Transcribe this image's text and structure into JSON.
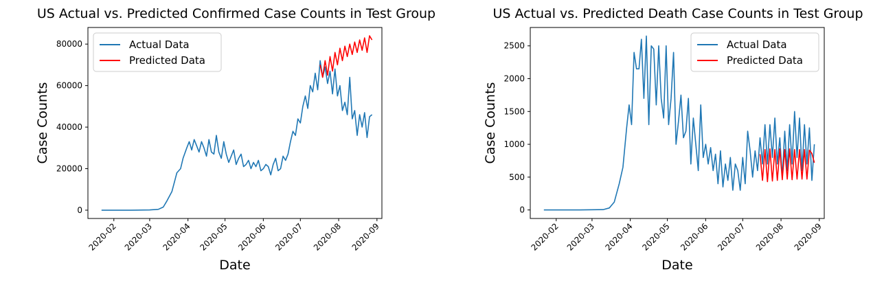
{
  "chart_data": [
    {
      "type": "line",
      "title": "US Actual vs. Predicted Confirmed Case Counts in Test Group",
      "xlabel": "Date",
      "ylabel": "Case Counts",
      "xlim": [
        "2020-01-11",
        "2020-09-05"
      ],
      "ylim": [
        -4000,
        88000
      ],
      "yticks": [
        0,
        20000,
        40000,
        60000,
        80000
      ],
      "xticks": [
        "2020-02",
        "2020-03",
        "2020-04",
        "2020-05",
        "2020-06",
        "2020-07",
        "2020-08",
        "2020-09"
      ],
      "legend": "upper-left",
      "grid": false,
      "series": [
        {
          "name": "Actual Data",
          "color": "#1f77b4",
          "x": [
            "2020-01-22",
            "2020-02-15",
            "2020-03-01",
            "2020-03-08",
            "2020-03-12",
            "2020-03-15",
            "2020-03-19",
            "2020-03-23",
            "2020-03-26",
            "2020-03-28",
            "2020-03-31",
            "2020-04-02",
            "2020-04-04",
            "2020-04-06",
            "2020-04-08",
            "2020-04-10",
            "2020-04-12",
            "2020-04-14",
            "2020-04-16",
            "2020-04-18",
            "2020-04-20",
            "2020-04-22",
            "2020-04-24",
            "2020-04-26",
            "2020-04-28",
            "2020-04-30",
            "2020-05-02",
            "2020-05-04",
            "2020-05-06",
            "2020-05-08",
            "2020-05-10",
            "2020-05-12",
            "2020-05-14",
            "2020-05-16",
            "2020-05-18",
            "2020-05-20",
            "2020-05-22",
            "2020-05-24",
            "2020-05-26",
            "2020-05-28",
            "2020-05-30",
            "2020-06-01",
            "2020-06-03",
            "2020-06-05",
            "2020-06-07",
            "2020-06-09",
            "2020-06-11",
            "2020-06-13",
            "2020-06-15",
            "2020-06-17",
            "2020-06-19",
            "2020-06-21",
            "2020-06-23",
            "2020-06-25",
            "2020-06-27",
            "2020-06-29",
            "2020-07-01",
            "2020-07-03",
            "2020-07-05",
            "2020-07-07",
            "2020-07-09",
            "2020-07-11",
            "2020-07-13",
            "2020-07-15",
            "2020-07-17",
            "2020-07-19",
            "2020-07-21",
            "2020-07-23",
            "2020-07-25",
            "2020-07-27",
            "2020-07-29",
            "2020-07-31",
            "2020-08-02",
            "2020-08-04",
            "2020-08-06",
            "2020-08-08",
            "2020-08-10",
            "2020-08-12",
            "2020-08-14",
            "2020-08-16",
            "2020-08-18",
            "2020-08-20",
            "2020-08-22",
            "2020-08-24",
            "2020-08-26",
            "2020-08-28"
          ],
          "values": [
            0,
            0,
            100,
            400,
            1500,
            4500,
            9000,
            18000,
            20000,
            25000,
            30000,
            33000,
            29000,
            34000,
            31000,
            28000,
            33000,
            30000,
            26000,
            34000,
            28000,
            27000,
            36000,
            28000,
            25000,
            33000,
            27000,
            23000,
            26000,
            29000,
            22000,
            25000,
            27000,
            21000,
            22000,
            24000,
            20000,
            23000,
            21000,
            24000,
            19000,
            20000,
            22000,
            21000,
            17000,
            22000,
            25000,
            19000,
            20000,
            26000,
            24000,
            27000,
            33000,
            38000,
            36000,
            44000,
            42000,
            50000,
            55000,
            49000,
            60000,
            57000,
            66000,
            58000,
            72000,
            64000,
            69000,
            61000,
            67000,
            56000,
            68000,
            55000,
            60000,
            48000,
            52000,
            46000,
            64000,
            44000,
            48000,
            36000,
            46000,
            40000,
            47000,
            35000,
            45000,
            46000
          ]
        },
        {
          "name": "Predicted Data",
          "color": "#ff0000",
          "x": [
            "2020-07-17",
            "2020-07-19",
            "2020-07-21",
            "2020-07-23",
            "2020-07-25",
            "2020-07-27",
            "2020-07-29",
            "2020-07-31",
            "2020-08-02",
            "2020-08-04",
            "2020-08-06",
            "2020-08-08",
            "2020-08-10",
            "2020-08-12",
            "2020-08-14",
            "2020-08-16",
            "2020-08-18",
            "2020-08-20",
            "2020-08-22",
            "2020-08-24",
            "2020-08-26",
            "2020-08-28"
          ],
          "values": [
            70000,
            64000,
            72000,
            65000,
            74000,
            67000,
            76000,
            70000,
            78000,
            72000,
            79000,
            74000,
            80000,
            75000,
            81000,
            76000,
            82000,
            77000,
            83000,
            76000,
            84000,
            82000
          ]
        }
      ]
    },
    {
      "type": "line",
      "title": "US Actual vs. Predicted Death Case Counts in Test Group",
      "xlabel": "Date",
      "ylabel": "Case Counts",
      "xlim": [
        "2020-01-11",
        "2020-09-05"
      ],
      "ylim": [
        -130,
        2780
      ],
      "yticks": [
        0,
        500,
        1000,
        1500,
        2000,
        2500
      ],
      "xticks": [
        "2020-02",
        "2020-03",
        "2020-04",
        "2020-05",
        "2020-06",
        "2020-07",
        "2020-08",
        "2020-09"
      ],
      "legend": "upper-right",
      "grid": false,
      "series": [
        {
          "name": "Actual Data",
          "color": "#1f77b4",
          "x": [
            "2020-01-22",
            "2020-02-20",
            "2020-03-10",
            "2020-03-15",
            "2020-03-19",
            "2020-03-23",
            "2020-03-26",
            "2020-03-29",
            "2020-03-31",
            "2020-04-02",
            "2020-04-04",
            "2020-04-06",
            "2020-04-08",
            "2020-04-10",
            "2020-04-12",
            "2020-04-14",
            "2020-04-16",
            "2020-04-18",
            "2020-04-20",
            "2020-04-22",
            "2020-04-24",
            "2020-04-26",
            "2020-04-28",
            "2020-04-30",
            "2020-05-02",
            "2020-05-04",
            "2020-05-06",
            "2020-05-08",
            "2020-05-10",
            "2020-05-12",
            "2020-05-14",
            "2020-05-16",
            "2020-05-18",
            "2020-05-20",
            "2020-05-22",
            "2020-05-24",
            "2020-05-26",
            "2020-05-28",
            "2020-05-30",
            "2020-06-01",
            "2020-06-03",
            "2020-06-05",
            "2020-06-07",
            "2020-06-09",
            "2020-06-11",
            "2020-06-13",
            "2020-06-15",
            "2020-06-17",
            "2020-06-19",
            "2020-06-21",
            "2020-06-23",
            "2020-06-25",
            "2020-06-27",
            "2020-06-29",
            "2020-07-01",
            "2020-07-03",
            "2020-07-05",
            "2020-07-07",
            "2020-07-09",
            "2020-07-11",
            "2020-07-13",
            "2020-07-15",
            "2020-07-17",
            "2020-07-19",
            "2020-07-21",
            "2020-07-23",
            "2020-07-25",
            "2020-07-27",
            "2020-07-29",
            "2020-07-31",
            "2020-08-02",
            "2020-08-04",
            "2020-08-06",
            "2020-08-08",
            "2020-08-10",
            "2020-08-12",
            "2020-08-14",
            "2020-08-16",
            "2020-08-18",
            "2020-08-20",
            "2020-08-22",
            "2020-08-24",
            "2020-08-26",
            "2020-08-28"
          ],
          "values": [
            0,
            0,
            5,
            30,
            120,
            400,
            650,
            1250,
            1600,
            1300,
            2400,
            2150,
            2150,
            2600,
            1700,
            2650,
            1300,
            2500,
            2450,
            1600,
            2500,
            1700,
            1400,
            2500,
            1300,
            1700,
            2400,
            1000,
            1350,
            1750,
            1100,
            1200,
            1700,
            700,
            1400,
            1000,
            600,
            1600,
            800,
            1000,
            700,
            950,
            600,
            850,
            400,
            900,
            350,
            700,
            450,
            800,
            300,
            700,
            600,
            300,
            800,
            400,
            1200,
            900,
            500,
            900,
            600,
            1100,
            700,
            1300,
            700,
            1300,
            800,
            1400,
            700,
            1100,
            500,
            1200,
            600,
            1300,
            700,
            1500,
            800,
            1400,
            600,
            1300,
            700,
            1250,
            450,
            1000
          ]
        },
        {
          "name": "Predicted Data",
          "color": "#ff0000",
          "x": [
            "2020-07-15",
            "2020-07-17",
            "2020-07-19",
            "2020-07-21",
            "2020-07-23",
            "2020-07-25",
            "2020-07-27",
            "2020-07-29",
            "2020-07-31",
            "2020-08-02",
            "2020-08-04",
            "2020-08-06",
            "2020-08-08",
            "2020-08-10",
            "2020-08-12",
            "2020-08-14",
            "2020-08-16",
            "2020-08-18",
            "2020-08-20",
            "2020-08-22",
            "2020-08-24",
            "2020-08-26",
            "2020-08-28"
          ],
          "values": [
            850,
            450,
            920,
            430,
            930,
            440,
            920,
            450,
            930,
            460,
            920,
            470,
            930,
            460,
            920,
            470,
            920,
            470,
            920,
            470,
            910,
            860,
            720
          ]
        }
      ]
    }
  ]
}
